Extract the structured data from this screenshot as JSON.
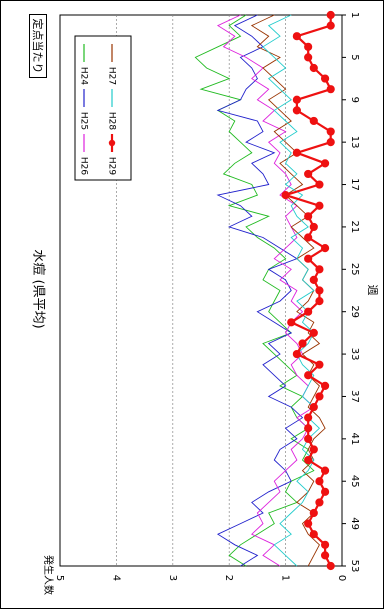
{
  "stamp_label": "定点当たり",
  "chart_data": {
    "type": "line",
    "title": "水痘 (県平均)",
    "xlabel": "週",
    "ylabel": "発生人数",
    "xlim": [
      1,
      53
    ],
    "ylim": [
      0,
      5
    ],
    "x_ticks": [
      "1",
      "5",
      "9",
      "13",
      "17",
      "21",
      "25",
      "29",
      "33",
      "37",
      "41",
      "45",
      "49",
      "53"
    ],
    "y_ticks": [
      "0",
      "1",
      "2",
      "3",
      "4",
      "5"
    ],
    "grid": true,
    "legend": "top-right",
    "series": [
      {
        "name": "H24",
        "color": "#22bb22",
        "markers": false,
        "values": [
          1.7,
          2.0,
          1.8,
          2.2,
          2.6,
          2.4,
          2.0,
          2.5,
          1.8,
          2.2,
          1.9,
          2.0,
          1.8,
          1.6,
          1.9,
          2.1,
          1.6,
          1.5,
          2.0,
          1.3,
          1.7,
          1.5,
          1.2,
          1.0,
          1.3,
          1.4,
          1.1,
          1.2,
          1.3,
          1.1,
          0.9,
          1.4,
          1.2,
          1.0,
          0.8,
          1.1,
          0.7,
          0.9,
          0.8,
          0.6,
          0.9,
          0.6,
          0.7,
          0.5,
          0.9,
          1.0,
          0.8,
          1.3,
          1.2,
          1.5,
          1.8,
          2.0,
          1.7
        ]
      },
      {
        "name": "H25",
        "color": "#2222cc",
        "markers": false,
        "values": [
          1.5,
          1.9,
          1.6,
          1.4,
          1.8,
          1.6,
          1.5,
          1.7,
          1.8,
          2.2,
          1.5,
          1.4,
          1.7,
          1.2,
          1.6,
          1.4,
          1.3,
          2.2,
          1.8,
          1.6,
          2.0,
          1.4,
          1.1,
          0.8,
          1.3,
          1.0,
          0.9,
          1.1,
          1.5,
          1.2,
          0.9,
          1.3,
          1.1,
          1.4,
          1.2,
          1.0,
          1.3,
          0.9,
          0.7,
          1.0,
          0.8,
          1.1,
          1.2,
          1.0,
          0.9,
          1.3,
          1.6,
          1.4,
          1.8,
          2.2,
          1.9,
          1.5,
          1.8
        ]
      },
      {
        "name": "H26",
        "color": "#dd22dd",
        "markers": false,
        "values": [
          1.8,
          2.2,
          1.9,
          2.1,
          1.7,
          1.4,
          1.6,
          1.3,
          1.5,
          1.2,
          1.4,
          1.0,
          1.3,
          1.1,
          1.2,
          1.0,
          0.9,
          1.1,
          0.8,
          1.0,
          0.9,
          0.8,
          1.0,
          1.2,
          0.9,
          1.1,
          0.8,
          0.9,
          0.7,
          0.9,
          1.0,
          0.8,
          0.7,
          0.9,
          0.8,
          0.6,
          0.7,
          0.5,
          0.8,
          0.6,
          0.7,
          0.9,
          0.8,
          1.0,
          1.2,
          1.1,
          1.3,
          1.5,
          1.4,
          1.6,
          1.2,
          1.4,
          1.1
        ]
      },
      {
        "name": "H27",
        "color": "#993300",
        "markers": false,
        "values": [
          1.2,
          1.6,
          1.3,
          1.5,
          1.1,
          1.4,
          1.2,
          1.0,
          1.3,
          1.1,
          0.9,
          1.2,
          1.0,
          0.8,
          1.1,
          0.9,
          0.7,
          1.0,
          0.8,
          0.6,
          0.9,
          0.7,
          0.5,
          0.8,
          0.6,
          0.7,
          0.5,
          0.6,
          0.8,
          0.5,
          0.6,
          0.4,
          0.7,
          0.5,
          0.6,
          0.4,
          0.5,
          0.6,
          0.4,
          0.3,
          0.5,
          0.6,
          0.5,
          0.7,
          0.5,
          0.6,
          0.8,
          0.5,
          0.7,
          0.6,
          0.4,
          0.5,
          0.6
        ]
      },
      {
        "name": "H28",
        "color": "#22cccc",
        "markers": false,
        "values": [
          0.9,
          1.3,
          1.1,
          1.4,
          1.2,
          1.0,
          1.3,
          1.1,
          0.9,
          1.2,
          1.0,
          0.8,
          1.1,
          0.9,
          1.0,
          0.8,
          1.0,
          0.7,
          0.9,
          0.8,
          0.6,
          0.9,
          0.7,
          0.8,
          0.6,
          0.7,
          0.5,
          0.8,
          0.6,
          0.7,
          0.5,
          0.6,
          0.8,
          0.7,
          0.5,
          0.6,
          0.7,
          0.5,
          0.6,
          0.4,
          0.6,
          0.7,
          0.5,
          0.6,
          0.8,
          0.6,
          0.7,
          0.9,
          1.1,
          0.9,
          1.2,
          1.0,
          0.8
        ]
      },
      {
        "name": "H29",
        "color": "#ee1111",
        "markers": true,
        "values": [
          0.2,
          0.2,
          0.8,
          0.6,
          0.6,
          0.5,
          0.3,
          0.2,
          0.8,
          0.8,
          0.5,
          0.2,
          0.2,
          0.8,
          0.3,
          0.6,
          0.4,
          1.0,
          0.4,
          0.6,
          0.5,
          0.6,
          0.3,
          0.6,
          0.4,
          0.5,
          0.4,
          0.4,
          0.6,
          0.9,
          0.5,
          0.7,
          0.8,
          0.4,
          0.6,
          0.3,
          0.4,
          0.5,
          0.6,
          0.6,
          0.6,
          0.5,
          0.6,
          0.3,
          0.4,
          0.3,
          0.4,
          0.5,
          0.6,
          0.5,
          0.3,
          0.3,
          0.2
        ]
      }
    ]
  }
}
